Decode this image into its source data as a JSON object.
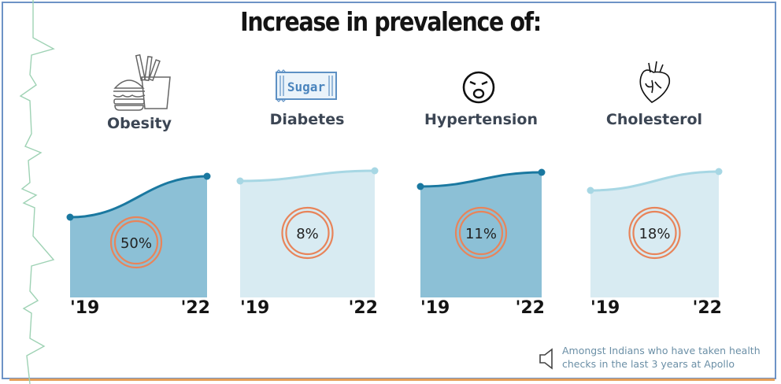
{
  "title": "Increase in prevalence of:",
  "colors": {
    "dark_fill": "#8cc0d6",
    "dark_line": "#1a78a0",
    "light_fill": "#d8ebf2",
    "light_line": "#a7d7e4",
    "ring": "#e8845a"
  },
  "chart_data": [
    {
      "type": "area",
      "category": "Obesity",
      "icon": "burger-fries-icon",
      "x": [
        "'19",
        "'22"
      ],
      "change_label": "50%",
      "change_value": 50,
      "highlighted": true
    },
    {
      "type": "area",
      "category": "Diabetes",
      "icon": "sugar-packet-icon",
      "x": [
        "'19",
        "'22"
      ],
      "change_label": "8%",
      "change_value": 8,
      "highlighted": false
    },
    {
      "type": "area",
      "category": "Hypertension",
      "icon": "stressed-face-icon",
      "x": [
        "'19",
        "'22"
      ],
      "change_label": "11%",
      "change_value": 11,
      "highlighted": true
    },
    {
      "type": "area",
      "category": "Cholesterol",
      "icon": "heart-icon",
      "x": [
        "'19",
        "'22"
      ],
      "change_label": "18%",
      "change_value": 18,
      "highlighted": false
    }
  ],
  "icons": {
    "sugar_text": "Sugar",
    "speaker": "speaker-icon",
    "ecg": "ecg-line-icon"
  },
  "note": "Amongst Indians who have taken health checks in the last 3 years at Apollo"
}
